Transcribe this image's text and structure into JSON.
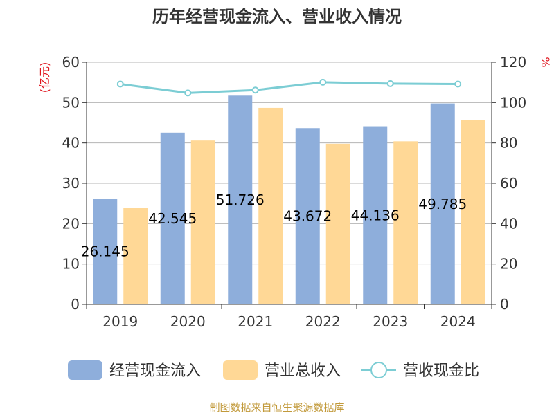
{
  "chart_data": {
    "type": "bar",
    "title": "历年经营现金流入、营业收入情况",
    "categories": [
      "2019",
      "2020",
      "2021",
      "2022",
      "2023",
      "2024"
    ],
    "series": [
      {
        "name": "经营现金流入",
        "kind": "bar",
        "axis": "left",
        "color": "#8eaedb",
        "values": [
          26.145,
          42.545,
          51.726,
          43.672,
          44.136,
          49.785
        ]
      },
      {
        "name": "营业总收入",
        "kind": "bar",
        "axis": "left",
        "color": "#ffd896",
        "values": [
          23.9,
          40.6,
          48.7,
          39.8,
          40.4,
          45.6
        ]
      },
      {
        "name": "营收现金比",
        "kind": "line",
        "axis": "right",
        "color": "#7ccdd4",
        "values": [
          109.2,
          104.8,
          106.2,
          110.1,
          109.4,
          109.2
        ]
      }
    ],
    "data_labels": [
      "26.145",
      "42.545",
      "51.726",
      "43.672",
      "44.136",
      "49.785"
    ],
    "y_left": {
      "unit": "(亿元)",
      "ticks": [
        "0",
        "10",
        "20",
        "30",
        "40",
        "50",
        "60"
      ],
      "ylim": [
        0,
        60
      ]
    },
    "y_right": {
      "unit": "%",
      "ticks": [
        "0",
        "20",
        "40",
        "60",
        "80",
        "100",
        "120"
      ],
      "ylim": [
        0,
        120
      ]
    },
    "grid": true,
    "legend_position": "bottom",
    "unit_color": "#e0141d"
  },
  "source": {
    "text": "制图数据来自恒生聚源数据库",
    "color": "#c29a3b"
  }
}
